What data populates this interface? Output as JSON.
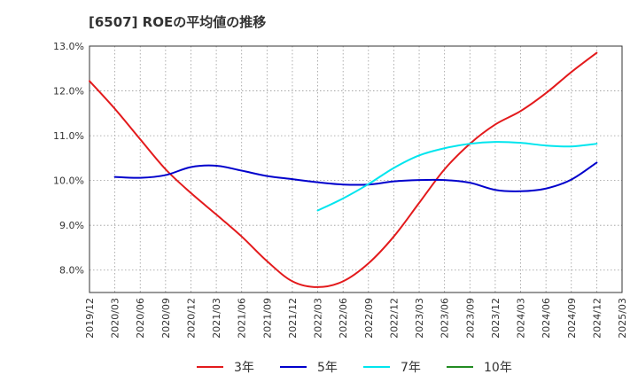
{
  "chart_data": {
    "type": "line",
    "title": "[6507]  ROEの平均値の推移",
    "xlabel": "",
    "ylabel": "",
    "ylim": [
      7.5,
      13.0
    ],
    "yticks": [
      8.0,
      9.0,
      10.0,
      11.0,
      12.0,
      13.0
    ],
    "ytick_labels": [
      "8.0%",
      "9.0%",
      "10.0%",
      "11.0%",
      "12.0%",
      "13.0%"
    ],
    "grid": true,
    "legend_position": "bottom",
    "x": [
      "2019/12",
      "2020/03",
      "2020/06",
      "2020/09",
      "2020/12",
      "2021/03",
      "2021/06",
      "2021/09",
      "2021/12",
      "2022/03",
      "2022/06",
      "2022/09",
      "2022/12",
      "2023/03",
      "2023/06",
      "2023/09",
      "2023/12",
      "2024/03",
      "2024/06",
      "2024/09",
      "2024/12",
      "2025/03"
    ],
    "series": [
      {
        "name": "3年",
        "color": "#e31a1c",
        "values": [
          12.22,
          11.6,
          10.92,
          10.25,
          9.72,
          9.24,
          8.75,
          8.2,
          7.75,
          7.62,
          7.75,
          8.15,
          8.75,
          9.5,
          10.25,
          10.82,
          11.25,
          11.55,
          11.95,
          12.42,
          12.85,
          null
        ]
      },
      {
        "name": "5年",
        "color": "#0000cc",
        "values": [
          null,
          10.08,
          10.06,
          10.12,
          10.3,
          10.33,
          10.22,
          10.1,
          10.03,
          9.96,
          9.91,
          9.91,
          9.98,
          10.01,
          10.01,
          9.95,
          9.79,
          9.76,
          9.82,
          10.02,
          10.4,
          null
        ]
      },
      {
        "name": "7年",
        "color": "#00e5ee",
        "values": [
          null,
          null,
          null,
          null,
          null,
          null,
          null,
          null,
          null,
          9.33,
          9.6,
          9.92,
          10.28,
          10.56,
          10.72,
          10.82,
          10.86,
          10.84,
          10.78,
          10.76,
          10.82,
          null
        ]
      },
      {
        "name": "10年",
        "color": "#228b22",
        "values": [
          null,
          null,
          null,
          null,
          null,
          null,
          null,
          null,
          null,
          null,
          null,
          null,
          null,
          null,
          null,
          null,
          null,
          null,
          null,
          null,
          null,
          null
        ]
      }
    ]
  }
}
